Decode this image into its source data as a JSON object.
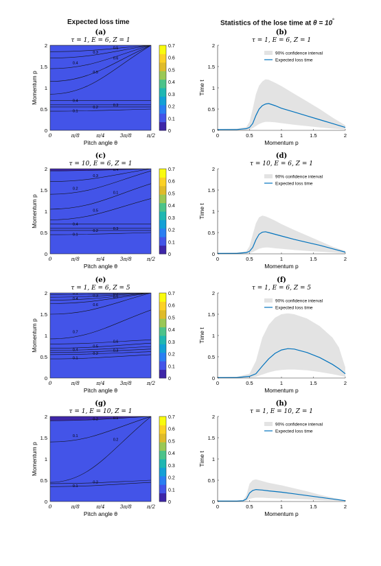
{
  "left_title": "Expected loss time",
  "right_title_prefix": "Statistics of the lose time at",
  "right_title_theta": "θ = 10",
  "right_title_deg": "°",
  "colors": {
    "parula": [
      "#3e26a8",
      "#4354e8",
      "#2a7ef2",
      "#13a0d6",
      "#1fb7b2",
      "#4cc38a",
      "#9ac855",
      "#dfbb2b",
      "#fbd125",
      "#f9fb0e"
    ],
    "ci_fill": "#e3e3e3",
    "line": "#0072bd"
  },
  "colorbar": {
    "min": 0,
    "max": 0.7,
    "ticks": [
      "0",
      "0.1",
      "0.2",
      "0.3",
      "0.4",
      "0.5",
      "0.6",
      "0.7"
    ]
  },
  "chart_data": [
    {
      "type": "heatmap",
      "panel": "(a)",
      "title": "τ = 1,  E = 6,  Z = 1",
      "xlabel": "Pitch angle θ",
      "ylabel": "Momentum p",
      "xticks": [
        "0",
        "π/8",
        "π/4",
        "3π/8",
        "π/2"
      ],
      "yticks": [
        "0",
        "0.5",
        "1",
        "1.5",
        "2"
      ],
      "xlim": [
        0,
        1.5708
      ],
      "ylim": [
        0,
        2
      ],
      "contour_labels": [
        "0.1",
        "0.2",
        "0.3",
        "0.4",
        "0.5",
        "0.6",
        "0.4",
        "0.3",
        "0.5"
      ],
      "bands": [
        {
          "level": 0.05,
          "y_left": 0.45,
          "y_right": 0.5
        },
        {
          "level": 0.15,
          "y_left": 0.55,
          "y_right": 0.55
        },
        {
          "level": 0.3,
          "y_left": 0.6,
          "y_right": 0.6
        },
        {
          "level": 0.45,
          "y_left": 0.7,
          "y_right": 0.7
        },
        {
          "level": 0.55,
          "y_left": 0.85,
          "y_right": 2.0
        },
        {
          "level": 0.45,
          "y_left": 1.15,
          "y_right": 2.0
        },
        {
          "level": 0.35,
          "y_left": 1.45,
          "y_right": 2.0
        },
        {
          "level": 0.25,
          "y_left": 1.7,
          "y_right": 2.0
        },
        {
          "level": 0.15,
          "y_left": 1.85,
          "y_right": 2.0
        },
        {
          "level": 0.05,
          "y_left": 2.0,
          "y_right": 2.0
        }
      ]
    },
    {
      "type": "line",
      "panel": "(b)",
      "title": "τ = 1,  E = 6,  Z = 1",
      "xlabel": "Momentum p",
      "ylabel": "Time t",
      "xlim": [
        0,
        2
      ],
      "ylim": [
        0,
        2
      ],
      "xticks": [
        "0",
        "0.5",
        "1",
        "1.5",
        "2"
      ],
      "yticks": [
        "0",
        "0.5",
        "1",
        "1.5",
        "2"
      ],
      "legend": [
        "90% confidence interval",
        "Expected loss time"
      ],
      "x": [
        0,
        0.3,
        0.45,
        0.5,
        0.55,
        0.6,
        0.65,
        0.7,
        0.75,
        0.8,
        0.9,
        1.0,
        1.2,
        1.4,
        1.6,
        1.8,
        2.0
      ],
      "mean": [
        0.02,
        0.02,
        0.04,
        0.07,
        0.16,
        0.35,
        0.5,
        0.58,
        0.62,
        0.63,
        0.58,
        0.52,
        0.43,
        0.34,
        0.25,
        0.16,
        0.07
      ],
      "lower": [
        0,
        0,
        0.01,
        0.02,
        0.05,
        0.1,
        0.15,
        0.18,
        0.2,
        0.2,
        0.19,
        0.17,
        0.13,
        0.1,
        0.07,
        0.04,
        0.02
      ],
      "upper": [
        0.03,
        0.04,
        0.08,
        0.2,
        0.5,
        0.85,
        1.05,
        1.15,
        1.2,
        1.19,
        1.12,
        1.04,
        0.86,
        0.68,
        0.5,
        0.3,
        0.12
      ]
    },
    {
      "type": "heatmap",
      "panel": "(c)",
      "title": "τ = 10,  E = 6,  Z = 1",
      "xlabel": "Pitch angle θ",
      "ylabel": "Momentum p",
      "xticks": [
        "0",
        "π/8",
        "π/4",
        "3π/8",
        "π/2"
      ],
      "yticks": [
        "0",
        "0.5",
        "1",
        "1.5",
        "2"
      ],
      "xlim": [
        0,
        1.5708
      ],
      "ylim": [
        0,
        2
      ],
      "contour_labels": [
        "0.1",
        "0.2",
        "0.3",
        "0.4",
        "0.5",
        "0.1",
        "0.2",
        "0.3",
        "0.4"
      ],
      "bands": [
        {
          "level": 0.05,
          "y_left": 0.45,
          "y_right": 0.5
        },
        {
          "level": 0.15,
          "y_left": 0.55,
          "y_right": 0.55
        },
        {
          "level": 0.25,
          "y_left": 0.6,
          "y_right": 0.6
        },
        {
          "level": 0.35,
          "y_left": 0.7,
          "y_right": 0.7
        },
        {
          "level": 0.45,
          "y_left": 0.8,
          "y_right": 1.3
        },
        {
          "level": 0.35,
          "y_left": 1.05,
          "y_right": 1.65
        },
        {
          "level": 0.25,
          "y_left": 1.4,
          "y_right": 1.95
        },
        {
          "level": 0.15,
          "y_left": 1.7,
          "y_right": 2.0
        },
        {
          "level": 0.05,
          "y_left": 1.95,
          "y_right": 2.0
        }
      ]
    },
    {
      "type": "line",
      "panel": "(d)",
      "title": "τ = 10,  E = 6,  Z = 1",
      "xlabel": "Momentum p",
      "ylabel": "Time t",
      "xlim": [
        0,
        2
      ],
      "ylim": [
        0,
        2
      ],
      "xticks": [
        "0",
        "0.5",
        "1",
        "1.5",
        "2"
      ],
      "yticks": [
        "0",
        "0.5",
        "1",
        "1.5",
        "2"
      ],
      "legend": [
        "90% confidence interval",
        "Expected loss time"
      ],
      "x": [
        0,
        0.3,
        0.45,
        0.5,
        0.55,
        0.6,
        0.65,
        0.7,
        0.75,
        0.8,
        0.9,
        1.0,
        1.2,
        1.4,
        1.6,
        1.8,
        2.0
      ],
      "mean": [
        0.01,
        0.01,
        0.03,
        0.06,
        0.15,
        0.33,
        0.46,
        0.51,
        0.52,
        0.5,
        0.46,
        0.42,
        0.34,
        0.27,
        0.2,
        0.12,
        0.04
      ],
      "lower": [
        0,
        0,
        0.01,
        0.02,
        0.04,
        0.08,
        0.12,
        0.14,
        0.15,
        0.15,
        0.13,
        0.12,
        0.09,
        0.07,
        0.05,
        0.03,
        0.01
      ],
      "upper": [
        0.02,
        0.03,
        0.06,
        0.18,
        0.45,
        0.72,
        0.86,
        0.9,
        0.88,
        0.85,
        0.78,
        0.7,
        0.56,
        0.43,
        0.3,
        0.17,
        0.07
      ]
    },
    {
      "type": "heatmap",
      "panel": "(e)",
      "title": "τ = 1,  E = 6,  Z = 5",
      "xlabel": "Pitch angle θ",
      "ylabel": "Momentum p",
      "xticks": [
        "0",
        "π/8",
        "π/4",
        "3π/8",
        "π/2"
      ],
      "yticks": [
        "0",
        "0.5",
        "1",
        "1.5",
        "2"
      ],
      "xlim": [
        0,
        1.5708
      ],
      "ylim": [
        0,
        2
      ],
      "contour_labels": [
        "0.1",
        "0.2",
        "0.3",
        "0.4",
        "0.5",
        "0.6",
        "0.7",
        "0.6",
        "0.5",
        "0.4",
        "0.3",
        "0.2",
        "0.1"
      ],
      "bands": [
        {
          "level": 0.05,
          "y_left": 0.45,
          "y_right": 0.55
        },
        {
          "level": 0.15,
          "y_left": 0.55,
          "y_right": 0.62
        },
        {
          "level": 0.25,
          "y_left": 0.6,
          "y_right": 0.68
        },
        {
          "level": 0.35,
          "y_left": 0.65,
          "y_right": 0.74
        },
        {
          "level": 0.45,
          "y_left": 0.7,
          "y_right": 0.82
        },
        {
          "level": 0.55,
          "y_left": 0.8,
          "y_right": 0.9
        },
        {
          "level": 0.65,
          "y_left": 0.92,
          "y_right": 1.6
        },
        {
          "level": 0.55,
          "y_left": 1.5,
          "y_right": 2.0
        },
        {
          "level": 0.45,
          "y_left": 1.75,
          "y_right": 2.0
        },
        {
          "level": 0.35,
          "y_left": 1.83,
          "y_right": 2.0
        },
        {
          "level": 0.25,
          "y_left": 1.9,
          "y_right": 2.0
        },
        {
          "level": 0.15,
          "y_left": 1.96,
          "y_right": 2.0
        },
        {
          "level": 0.05,
          "y_left": 2.0,
          "y_right": 2.0
        }
      ]
    },
    {
      "type": "line",
      "panel": "(f)",
      "title": "τ = 1,  E = 6,  Z = 5",
      "xlabel": "Momentum p",
      "ylabel": "Time t",
      "xlim": [
        0,
        2
      ],
      "ylim": [
        0,
        2
      ],
      "xticks": [
        "0",
        "0.5",
        "1",
        "1.5",
        "2"
      ],
      "yticks": [
        "0",
        "0.5",
        "1",
        "1.5",
        "2"
      ],
      "legend": [
        "90% confidence interval",
        "Expected loss time"
      ],
      "x": [
        0,
        0.3,
        0.5,
        0.6,
        0.7,
        0.8,
        0.9,
        1.0,
        1.1,
        1.2,
        1.4,
        1.6,
        1.8,
        1.9,
        2.0
      ],
      "mean": [
        0.01,
        0.01,
        0.04,
        0.1,
        0.28,
        0.45,
        0.58,
        0.66,
        0.69,
        0.68,
        0.6,
        0.48,
        0.32,
        0.22,
        0.1
      ],
      "lower": [
        0,
        0,
        0.01,
        0.03,
        0.08,
        0.13,
        0.17,
        0.19,
        0.2,
        0.2,
        0.18,
        0.14,
        0.09,
        0.06,
        0.03
      ],
      "upper": [
        0.02,
        0.03,
        0.1,
        0.4,
        0.95,
        1.25,
        1.42,
        1.5,
        1.52,
        1.5,
        1.4,
        1.22,
        0.95,
        0.72,
        0.25
      ]
    },
    {
      "type": "heatmap",
      "panel": "(g)",
      "title": "τ = 1,  E = 10,  Z = 1",
      "xlabel": "Pitch angle θ",
      "ylabel": "Momentum p",
      "xticks": [
        "0",
        "π/8",
        "π/4",
        "3π/8",
        "π/2"
      ],
      "yticks": [
        "0",
        "0.5",
        "1",
        "1.5",
        "2"
      ],
      "xlim": [
        0,
        1.5708
      ],
      "ylim": [
        0,
        2
      ],
      "contour_labels": [
        "0.1",
        "0.2",
        "0.2",
        "0.1",
        "0.2",
        "0.1"
      ],
      "bands": [
        {
          "level": 0.05,
          "y_left": 0.35,
          "y_right": 0.45
        },
        {
          "level": 0.15,
          "y_left": 0.42,
          "y_right": 0.5
        },
        {
          "level": 0.25,
          "y_left": 0.45,
          "y_right": 2.0
        },
        {
          "level": 0.15,
          "y_left": 1.4,
          "y_right": 2.0
        },
        {
          "level": 0.05,
          "y_left": 1.9,
          "y_right": 2.0
        }
      ]
    },
    {
      "type": "line",
      "panel": "(h)",
      "title": "τ = 1,  E = 10,  Z = 1",
      "xlabel": "Momentum p",
      "ylabel": "Time t",
      "xlim": [
        0,
        2
      ],
      "ylim": [
        0,
        2
      ],
      "xticks": [
        "0",
        "0.5",
        "1",
        "1.5",
        "2"
      ],
      "yticks": [
        "0",
        "0.5",
        "1",
        "1.5",
        "2"
      ],
      "legend": [
        "90% confidence interval",
        "Expected loss time"
      ],
      "x": [
        0,
        0.3,
        0.4,
        0.45,
        0.5,
        0.55,
        0.6,
        0.7,
        0.8,
        1.0,
        1.2,
        1.4,
        1.6,
        1.8,
        2.0
      ],
      "mean": [
        0.01,
        0.01,
        0.02,
        0.06,
        0.2,
        0.26,
        0.28,
        0.27,
        0.25,
        0.22,
        0.18,
        0.14,
        0.1,
        0.06,
        0.02
      ],
      "lower": [
        0,
        0,
        0.01,
        0.02,
        0.06,
        0.08,
        0.09,
        0.09,
        0.08,
        0.07,
        0.06,
        0.05,
        0.03,
        0.02,
        0.01
      ],
      "upper": [
        0.02,
        0.02,
        0.04,
        0.15,
        0.42,
        0.5,
        0.52,
        0.48,
        0.44,
        0.38,
        0.31,
        0.24,
        0.16,
        0.09,
        0.03
      ]
    }
  ]
}
